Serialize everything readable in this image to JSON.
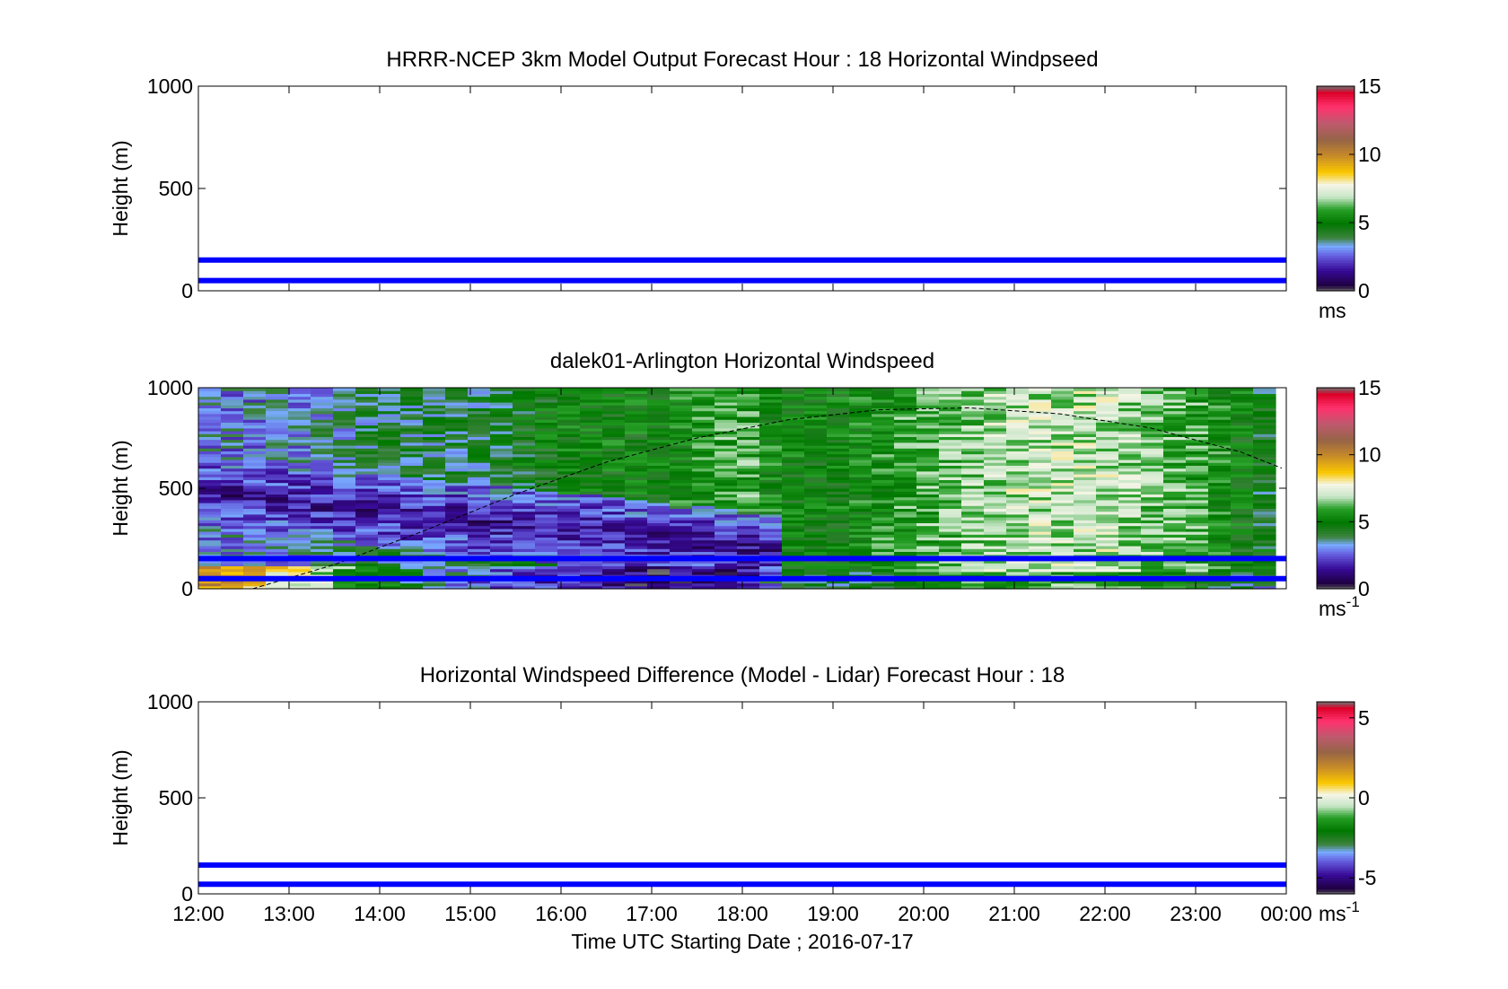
{
  "figure": {
    "xlabel": "Time UTC  Starting Date ; 2016-07-17",
    "xticks": [
      "12:00",
      "13:00",
      "14:00",
      "15:00",
      "16:00",
      "17:00",
      "18:00",
      "19:00",
      "20:00",
      "21:00",
      "22:00",
      "23:00",
      "00:00"
    ],
    "ylabel": "Height (m)"
  },
  "chart_data": [
    {
      "type": "heatmap",
      "title": "HRRR-NCEP 3km Model Output   Forecast Hour : 18 Horizontal Windpseed",
      "ylabel": "Height (m)",
      "yticks": [
        0,
        500,
        1000
      ],
      "ylim": [
        0,
        1000
      ],
      "xlim": [
        "12:00",
        "00:00"
      ],
      "colorbar": {
        "ticks": [
          0,
          5,
          10,
          15
        ],
        "range": [
          0,
          15
        ],
        "unit": "ms",
        "unit_sup": ""
      },
      "hlines": [
        {
          "y": 150,
          "color": "#0000ff"
        },
        {
          "y": 50,
          "color": "#0000ff"
        }
      ],
      "has_field": false
    },
    {
      "type": "heatmap",
      "title": "dalek01-Arlington  Horizontal Windspeed",
      "ylabel": "Height (m)",
      "yticks": [
        0,
        500,
        1000
      ],
      "ylim": [
        0,
        1000
      ],
      "xlim": [
        "12:00",
        "00:00"
      ],
      "colorbar": {
        "ticks": [
          0,
          5,
          10,
          15
        ],
        "range": [
          0,
          15
        ],
        "unit": "ms",
        "unit_sup": "-1"
      },
      "hlines": [
        {
          "y": 150,
          "color": "#0000ff"
        },
        {
          "y": 50,
          "color": "#0000ff"
        }
      ],
      "has_field": true,
      "boundary_layer_curve": {
        "x_hours": [
          12.6,
          13.5,
          14.5,
          15.5,
          16.5,
          17.5,
          18.5,
          19.5,
          20.5,
          21.5,
          22.5,
          23.5,
          23.95
        ],
        "height_m": [
          0,
          120,
          290,
          470,
          630,
          750,
          840,
          890,
          900,
          870,
          800,
          680,
          600
        ]
      },
      "field_profile": {
        "note_hours": [
          12,
          13,
          14,
          15,
          16,
          17,
          18,
          18.5,
          19,
          20,
          21,
          22,
          23,
          24
        ],
        "low_jet_speed_ms": [
          10,
          8,
          5,
          3,
          2,
          1,
          1,
          4,
          5,
          6,
          7,
          6,
          5,
          5
        ],
        "upper_speed_ms": [
          3,
          3,
          4,
          4,
          5,
          5,
          6,
          5,
          5,
          6,
          7,
          7,
          6,
          4
        ]
      }
    },
    {
      "type": "heatmap",
      "title": "Horizontal Windspeed Difference (Model - Lidar) Forecast Hour : 18",
      "ylabel": "Height (m)",
      "yticks": [
        0,
        500,
        1000
      ],
      "ylim": [
        0,
        1000
      ],
      "xlim": [
        "12:00",
        "00:00"
      ],
      "colorbar": {
        "ticks": [
          -5,
          0,
          5
        ],
        "range": [
          -6,
          6
        ],
        "unit": "ms",
        "unit_sup": "-1"
      },
      "hlines": [
        {
          "y": 150,
          "color": "#0000ff"
        },
        {
          "y": 50,
          "color": "#0000ff"
        }
      ],
      "has_field": false
    }
  ]
}
